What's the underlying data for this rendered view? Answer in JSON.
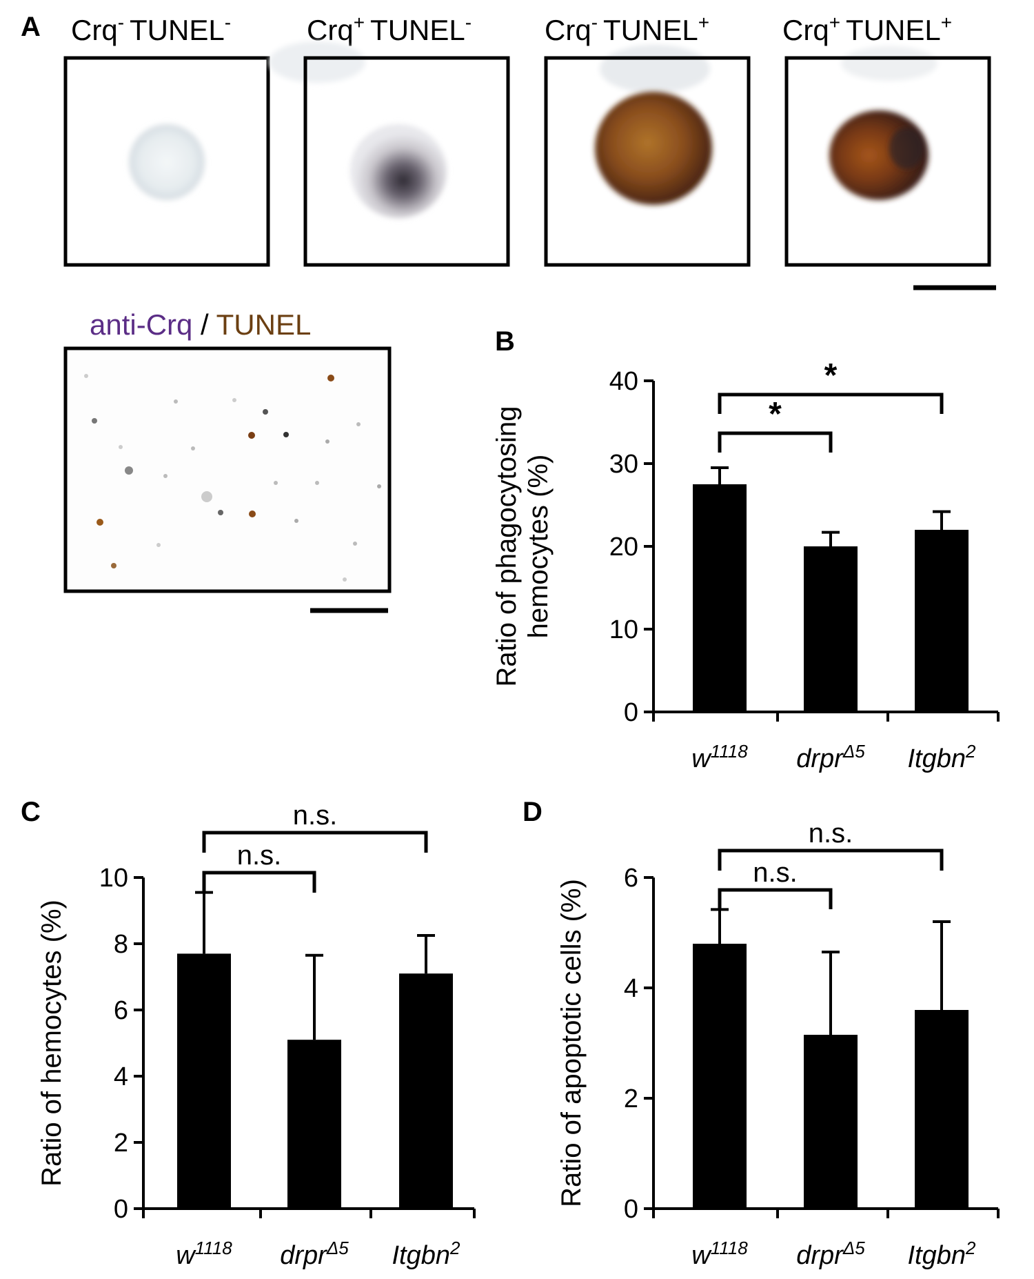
{
  "panels": {
    "a": "A",
    "b": "B",
    "c": "C",
    "d": "D"
  },
  "micrographs": {
    "tiles": [
      {
        "base": "Crq",
        "base_sign": "-",
        "marker": "TUNEL",
        "marker_sign": "-"
      },
      {
        "base": "Crq",
        "base_sign": "+",
        "marker": "TUNEL",
        "marker_sign": "-"
      },
      {
        "base": "Crq",
        "base_sign": "-",
        "marker": "TUNEL",
        "marker_sign": "+"
      },
      {
        "base": "Crq",
        "base_sign": "+",
        "marker": "TUNEL",
        "marker_sign": "+"
      }
    ],
    "overview_label": {
      "stain1": "anti-Crq",
      "sep": " / ",
      "stain2": "TUNEL"
    },
    "colors": {
      "stain1": "#5b2d86",
      "stain2": "#6b3f12"
    }
  },
  "genotypes": [
    {
      "base": "w",
      "sup": "1118"
    },
    {
      "base": "drpr",
      "sup": "Δ5"
    },
    {
      "base": "Itgbn",
      "sup": "2"
    }
  ],
  "chart_data": [
    {
      "id": "B",
      "type": "bar",
      "categories": [
        "w1118",
        "drprΔ5",
        "Itgbn2"
      ],
      "values": [
        27.5,
        20,
        22
      ],
      "errors": [
        2,
        1.7,
        2.2
      ],
      "ylim": [
        0,
        40
      ],
      "yticks": [
        0,
        10,
        20,
        30,
        40
      ],
      "ylabel_lines": [
        "Ratio of phagocytosing",
        "hemocytes (%)"
      ],
      "comparisons": [
        {
          "from": 0,
          "to": 1,
          "label": "*"
        },
        {
          "from": 0,
          "to": 2,
          "label": "*"
        }
      ]
    },
    {
      "id": "C",
      "type": "bar",
      "categories": [
        "w1118",
        "drprΔ5",
        "Itgbn2"
      ],
      "values": [
        7.7,
        5.1,
        7.1
      ],
      "errors": [
        1.85,
        2.55,
        1.15
      ],
      "ylim": [
        0,
        10
      ],
      "yticks": [
        0,
        2,
        4,
        6,
        8,
        10
      ],
      "ylabel_lines": [
        "Ratio of hemocytes (%)"
      ],
      "comparisons": [
        {
          "from": 0,
          "to": 1,
          "label": "n.s."
        },
        {
          "from": 0,
          "to": 2,
          "label": "n.s."
        }
      ]
    },
    {
      "id": "D",
      "type": "bar",
      "categories": [
        "w1118",
        "drprΔ5",
        "Itgbn2"
      ],
      "values": [
        4.8,
        3.15,
        3.6
      ],
      "errors": [
        0.62,
        1.5,
        1.6
      ],
      "ylim": [
        0,
        6
      ],
      "yticks": [
        0,
        2,
        4,
        6
      ],
      "ylabel_lines": [
        "Ratio of apoptotic cells (%)"
      ],
      "comparisons": [
        {
          "from": 0,
          "to": 1,
          "label": "n.s."
        },
        {
          "from": 0,
          "to": 2,
          "label": "n.s."
        }
      ]
    }
  ]
}
